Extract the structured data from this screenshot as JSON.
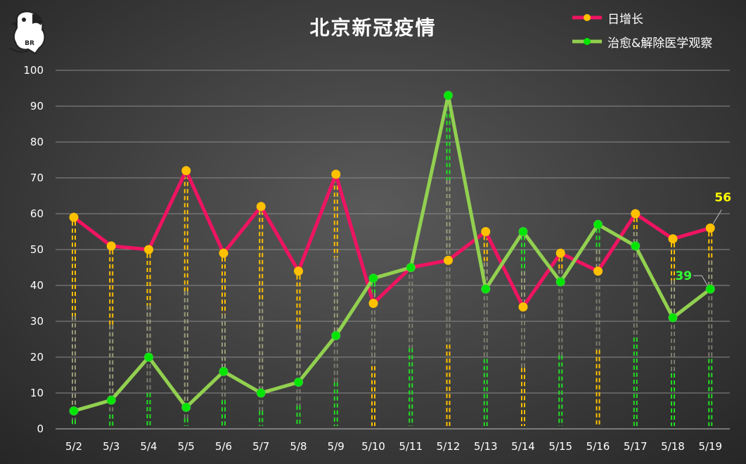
{
  "title": "北京新冠疫情",
  "logo_text": "BR",
  "chart_data": {
    "type": "line",
    "title": "北京新冠疫情",
    "categories": [
      "5/2",
      "5/3",
      "5/4",
      "5/5",
      "5/6",
      "5/7",
      "5/8",
      "5/9",
      "5/10",
      "5/11",
      "5/12",
      "5/13",
      "5/14",
      "5/15",
      "5/16",
      "5/17",
      "5/18",
      "5/19"
    ],
    "series": [
      {
        "name": "日增长",
        "color": "#ee1461",
        "marker": "#ffc000",
        "values": [
          59,
          51,
          50,
          72,
          49,
          62,
          44,
          71,
          35,
          45,
          47,
          55,
          34,
          49,
          44,
          60,
          53,
          56
        ]
      },
      {
        "name": "治愈&解除医学观察",
        "color": "#92d050",
        "marker": "#00e600",
        "values": [
          5,
          8,
          20,
          6,
          16,
          10,
          13,
          26,
          42,
          45,
          93,
          39,
          55,
          41,
          57,
          51,
          31,
          39
        ]
      }
    ],
    "ylim": [
      0,
      100
    ],
    "yticks": [
      0,
      10,
      20,
      30,
      40,
      50,
      60,
      70,
      80,
      90,
      100
    ],
    "grid": true,
    "legend": "top-right",
    "annotations": [
      {
        "text": "56",
        "series": 0,
        "index": 17,
        "color": "#ffff00"
      },
      {
        "text": "39",
        "series": 1,
        "index": 17,
        "color": "#33ff33"
      }
    ]
  }
}
